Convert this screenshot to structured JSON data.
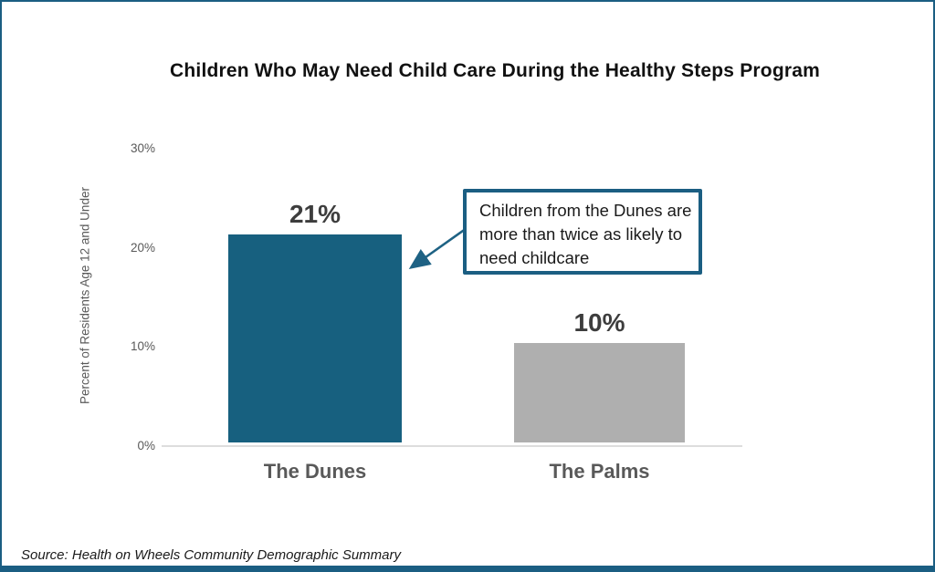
{
  "window": {
    "accent_color": "#1b5e82",
    "background_color": "#ffffff"
  },
  "chart_data": {
    "type": "bar",
    "title": "Children Who May Need Child Care During the Healthy Steps Program",
    "categories": [
      "The Dunes",
      "The Palms"
    ],
    "values": [
      21,
      10
    ],
    "value_labels": [
      "21%",
      "10%"
    ],
    "bar_colors": [
      "#17607f",
      "#afafaf"
    ],
    "xlabel": "",
    "ylabel": "Percent of Residents Age 12 and Under",
    "ylim": [
      0,
      30
    ],
    "yticks": [
      {
        "label": "0%",
        "value": 0
      },
      {
        "label": "10%",
        "value": 10
      },
      {
        "label": "20%",
        "value": 20
      },
      {
        "label": "30%",
        "value": 30
      }
    ],
    "grid": false,
    "legend": false
  },
  "annotation": {
    "text": "Children from the Dunes are more than twice as likely to need childcare",
    "border_color": "#1b5e82",
    "arrow_color": "#1e6284"
  },
  "footer": {
    "source": "Source: Health on Wheels Community Demographic Summary"
  }
}
